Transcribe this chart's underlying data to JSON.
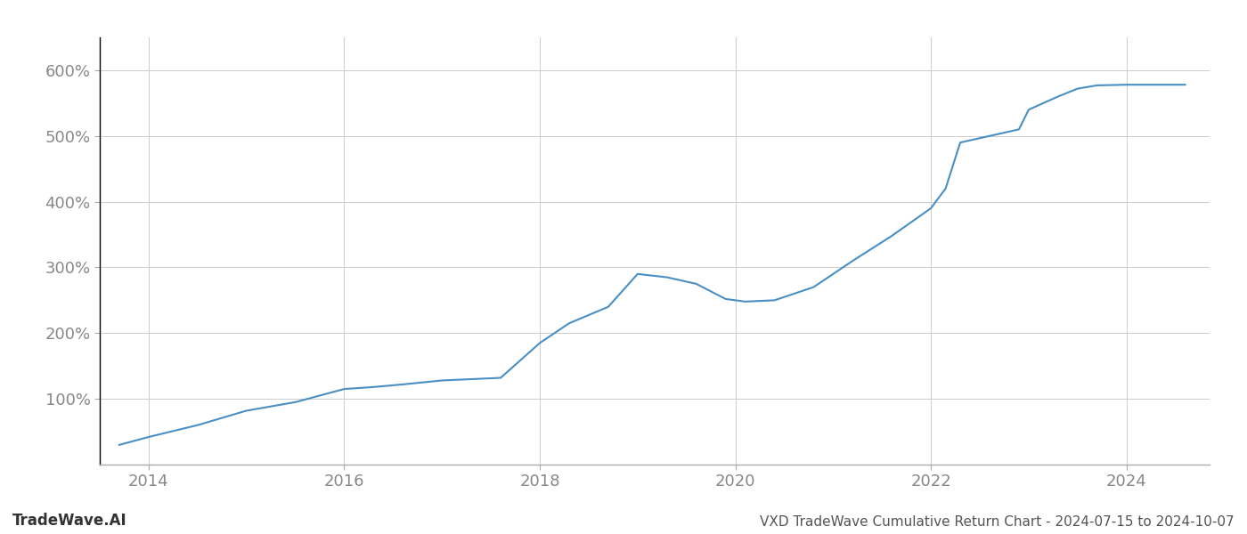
{
  "title": "VXD TradeWave Cumulative Return Chart - 2024-07-15 to 2024-10-07",
  "watermark": "TradeWave.AI",
  "line_color": "#4a8fc4",
  "line_width": 1.5,
  "background_color": "#ffffff",
  "grid_color": "#cccccc",
  "x_years": [
    2013.7,
    2014.0,
    2014.5,
    2015.0,
    2015.5,
    2016.0,
    2016.3,
    2016.6,
    2017.0,
    2017.3,
    2017.6,
    2018.0,
    2018.3,
    2018.7,
    2019.0,
    2019.3,
    2019.6,
    2019.9,
    2020.0,
    2020.1,
    2020.4,
    2020.8,
    2021.2,
    2021.6,
    2022.0,
    2022.15,
    2022.3,
    2022.6,
    2022.9,
    2023.0,
    2023.3,
    2023.5,
    2023.7,
    2024.0,
    2024.3,
    2024.6
  ],
  "y_values": [
    30,
    42,
    60,
    82,
    95,
    115,
    118,
    122,
    128,
    130,
    132,
    185,
    215,
    240,
    290,
    285,
    275,
    252,
    250,
    248,
    250,
    270,
    310,
    348,
    390,
    420,
    490,
    500,
    510,
    540,
    560,
    572,
    577,
    578,
    578,
    578
  ],
  "xlim": [
    2013.5,
    2024.85
  ],
  "ylim": [
    0,
    650
  ],
  "yticks": [
    100,
    200,
    300,
    400,
    500,
    600
  ],
  "ytick_labels": [
    "100%",
    "200%",
    "300%",
    "400%",
    "500%",
    "600%"
  ],
  "xticks": [
    2014,
    2016,
    2018,
    2020,
    2022,
    2024
  ],
  "tick_color": "#888888",
  "tick_fontsize": 13,
  "title_fontsize": 11,
  "watermark_fontsize": 12,
  "left_spine_color": "#000000",
  "bottom_spine_color": "#aaaaaa"
}
